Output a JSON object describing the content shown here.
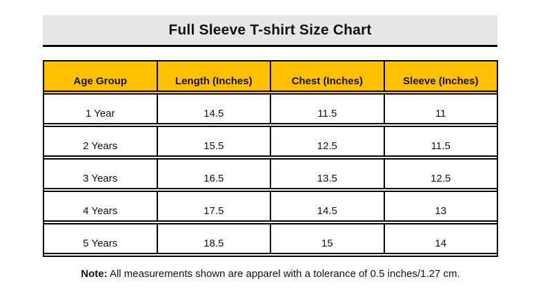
{
  "title": "Full Sleeve T-shirt Size Chart",
  "colors": {
    "header_bg": "#FFC000",
    "title_bg": "#E7E6E6",
    "border": "#000000",
    "text": "#111111"
  },
  "table": {
    "columns": [
      "Age Group",
      "Length (Inches)",
      "Chest (Inches)",
      "Sleeve (Inches)"
    ],
    "rows": [
      [
        "1 Year",
        "14.5",
        "11.5",
        "11"
      ],
      [
        "2 Years",
        "15.5",
        "12.5",
        "11.5"
      ],
      [
        "3 Years",
        "16.5",
        "13.5",
        "12.5"
      ],
      [
        "4 Years",
        "17.5",
        "14.5",
        "13"
      ],
      [
        "5 Years",
        "18.5",
        "15",
        "14"
      ]
    ]
  },
  "note": {
    "label": "Note:",
    "text": "All measurements shown are apparel with a tolerance of 0.5 inches/1.27 cm."
  },
  "chart_data": {
    "type": "table",
    "title": "Full Sleeve T-shirt Size Chart",
    "columns": [
      "Age Group",
      "Length (Inches)",
      "Chest (Inches)",
      "Sleeve (Inches)"
    ],
    "rows": [
      [
        "1 Year",
        14.5,
        11.5,
        11
      ],
      [
        "2 Years",
        15.5,
        12.5,
        11.5
      ],
      [
        "3 Years",
        16.5,
        13.5,
        12.5
      ],
      [
        "4 Years",
        17.5,
        14.5,
        13
      ],
      [
        "5 Years",
        18.5,
        15,
        14
      ]
    ]
  }
}
